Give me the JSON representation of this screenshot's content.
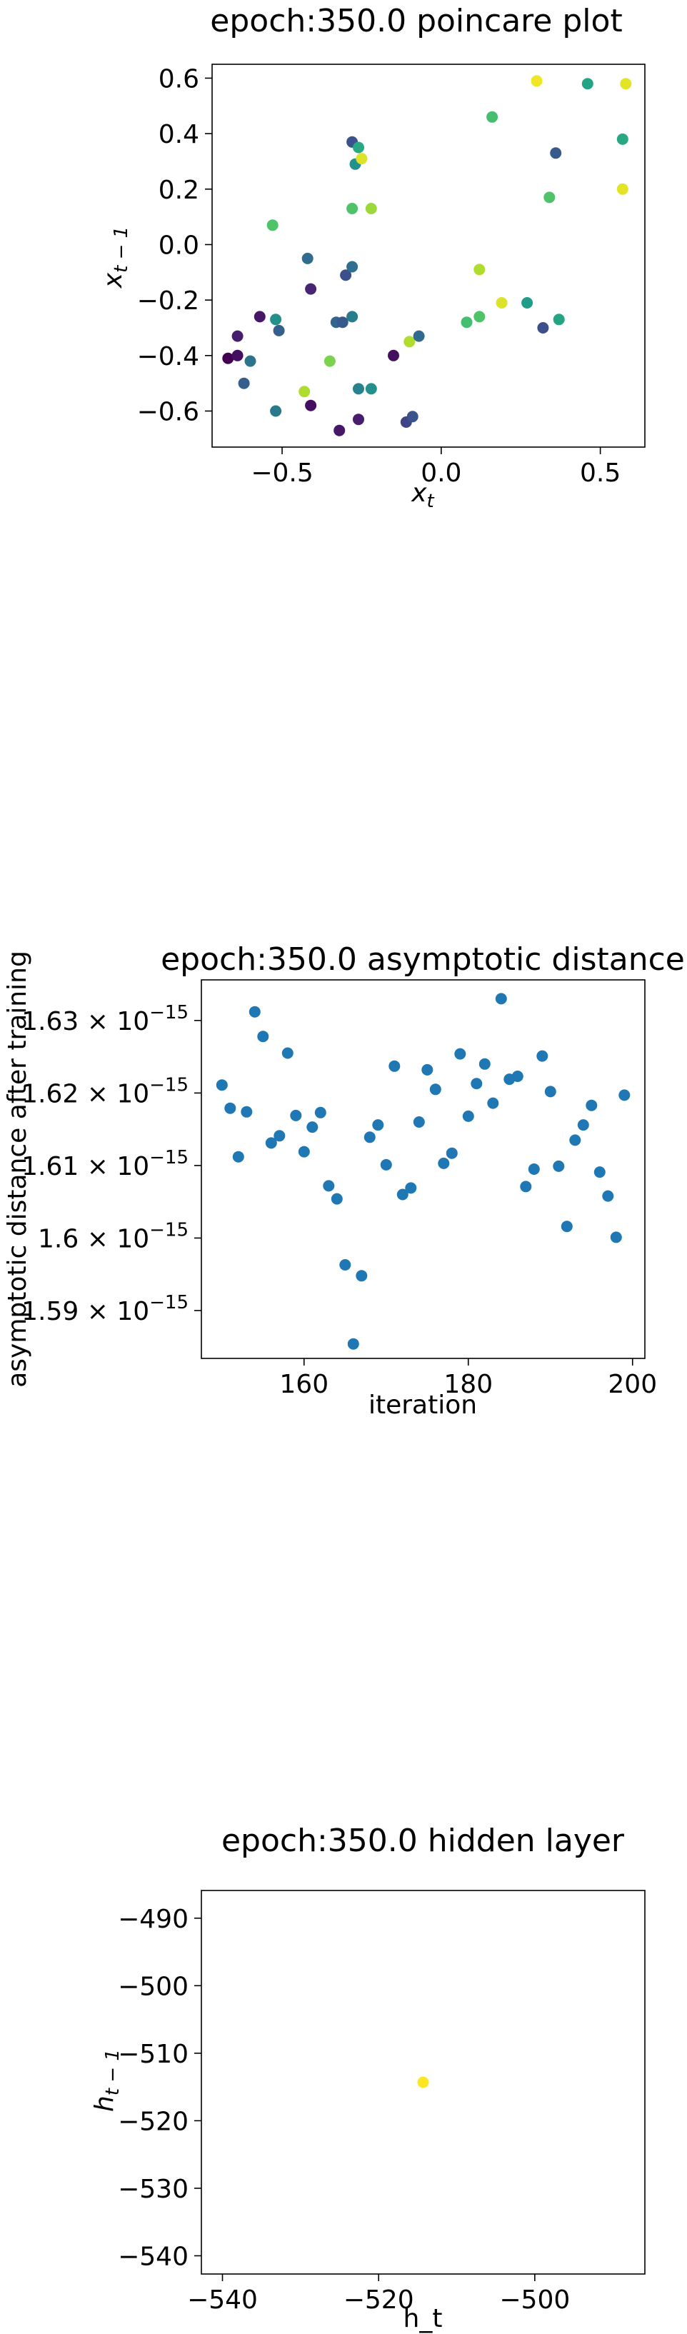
{
  "chart_data": [
    {
      "type": "scatter",
      "title": "epoch:350.0 poincare plot",
      "xlabel": "x_t",
      "ylabel": "x_{t-1}",
      "xlim": [
        -0.72,
        0.64
      ],
      "ylim": [
        -0.73,
        0.65
      ],
      "xticks": [
        -0.5,
        0.0,
        0.5
      ],
      "xtick_labels": [
        "−0.5",
        "0.0",
        "0.5"
      ],
      "yticks": [
        -0.6,
        -0.4,
        -0.2,
        0.0,
        0.2,
        0.4,
        0.6
      ],
      "ytick_labels": [
        "−0.6",
        "−0.4",
        "−0.2",
        "0.0",
        "0.2",
        "0.4",
        "0.6"
      ],
      "colormap": "viridis",
      "points": [
        {
          "x": -0.67,
          "y": -0.41,
          "c": 0.0
        },
        {
          "x": -0.64,
          "y": -0.33,
          "c": 0.08
        },
        {
          "x": -0.64,
          "y": -0.4,
          "c": 0.04
        },
        {
          "x": -0.62,
          "y": -0.5,
          "c": 0.3
        },
        {
          "x": -0.6,
          "y": -0.42,
          "c": 0.38
        },
        {
          "x": -0.57,
          "y": -0.26,
          "c": 0.06
        },
        {
          "x": -0.53,
          "y": 0.07,
          "c": 0.72
        },
        {
          "x": -0.52,
          "y": -0.27,
          "c": 0.5
        },
        {
          "x": -0.51,
          "y": -0.31,
          "c": 0.3
        },
        {
          "x": -0.52,
          "y": -0.6,
          "c": 0.4
        },
        {
          "x": -0.43,
          "y": -0.53,
          "c": 0.88
        },
        {
          "x": -0.42,
          "y": -0.05,
          "c": 0.35
        },
        {
          "x": -0.41,
          "y": -0.16,
          "c": 0.1
        },
        {
          "x": -0.41,
          "y": -0.58,
          "c": 0.04
        },
        {
          "x": -0.35,
          "y": -0.42,
          "c": 0.8
        },
        {
          "x": -0.33,
          "y": -0.28,
          "c": 0.32
        },
        {
          "x": -0.32,
          "y": -0.67,
          "c": 0.06
        },
        {
          "x": -0.31,
          "y": -0.28,
          "c": 0.28
        },
        {
          "x": -0.3,
          "y": -0.11,
          "c": 0.24
        },
        {
          "x": -0.28,
          "y": 0.37,
          "c": 0.26
        },
        {
          "x": -0.28,
          "y": 0.13,
          "c": 0.72
        },
        {
          "x": -0.28,
          "y": -0.26,
          "c": 0.42
        },
        {
          "x": -0.28,
          "y": -0.08,
          "c": 0.36
        },
        {
          "x": -0.27,
          "y": 0.29,
          "c": 0.5
        },
        {
          "x": -0.26,
          "y": 0.35,
          "c": 0.6
        },
        {
          "x": -0.26,
          "y": -0.63,
          "c": 0.08
        },
        {
          "x": -0.25,
          "y": 0.31,
          "c": 0.95
        },
        {
          "x": -0.26,
          "y": -0.52,
          "c": 0.45
        },
        {
          "x": -0.22,
          "y": 0.13,
          "c": 0.85
        },
        {
          "x": -0.22,
          "y": -0.52,
          "c": 0.5
        },
        {
          "x": -0.15,
          "y": -0.4,
          "c": 0.04
        },
        {
          "x": -0.11,
          "y": -0.64,
          "c": 0.2
        },
        {
          "x": -0.1,
          "y": -0.35,
          "c": 0.88
        },
        {
          "x": -0.09,
          "y": -0.62,
          "c": 0.26
        },
        {
          "x": -0.07,
          "y": -0.33,
          "c": 0.34
        },
        {
          "x": 0.08,
          "y": -0.28,
          "c": 0.7
        },
        {
          "x": 0.12,
          "y": -0.26,
          "c": 0.72
        },
        {
          "x": 0.12,
          "y": -0.09,
          "c": 0.88
        },
        {
          "x": 0.16,
          "y": 0.46,
          "c": 0.7
        },
        {
          "x": 0.19,
          "y": -0.21,
          "c": 0.95
        },
        {
          "x": 0.27,
          "y": -0.21,
          "c": 0.55
        },
        {
          "x": 0.3,
          "y": 0.59,
          "c": 0.98
        },
        {
          "x": 0.32,
          "y": -0.3,
          "c": 0.24
        },
        {
          "x": 0.34,
          "y": 0.17,
          "c": 0.72
        },
        {
          "x": 0.36,
          "y": 0.33,
          "c": 0.28
        },
        {
          "x": 0.37,
          "y": -0.27,
          "c": 0.58
        },
        {
          "x": 0.46,
          "y": 0.58,
          "c": 0.58
        },
        {
          "x": 0.57,
          "y": 0.38,
          "c": 0.6
        },
        {
          "x": 0.57,
          "y": 0.2,
          "c": 0.96
        },
        {
          "x": 0.58,
          "y": 0.58,
          "c": 0.96
        }
      ]
    },
    {
      "type": "scatter",
      "title": "epoch:350.0 asymptotic distance",
      "xlabel": "iteration",
      "ylabel": "asymptotic distance after training",
      "xlim": [
        147.5,
        201.5
      ],
      "ylim": [
        1.5834,
        1.6356
      ],
      "y_scale_exponent": -15,
      "xticks": [
        160,
        180,
        200
      ],
      "xtick_labels": [
        "160",
        "180",
        "200"
      ],
      "yticks": [
        1.59,
        1.6,
        1.61,
        1.62,
        1.63
      ],
      "ytick_mantissas": [
        "1.59",
        "1.6",
        "1.61",
        "1.62",
        "1.63"
      ],
      "ytick_base": "10",
      "ytick_exponent": "−15",
      "color": "#1f77b4",
      "x": [
        150,
        151,
        152,
        153,
        154,
        155,
        156,
        157,
        158,
        159,
        160,
        161,
        162,
        163,
        164,
        165,
        166,
        167,
        168,
        169,
        170,
        171,
        172,
        173,
        174,
        175,
        176,
        177,
        178,
        179,
        180,
        181,
        182,
        183,
        184,
        185,
        186,
        187,
        188,
        189,
        190,
        191,
        192,
        193,
        194,
        195,
        196,
        197,
        198,
        199
      ],
      "y": [
        1.6211,
        1.6179,
        1.6112,
        1.6174,
        1.6312,
        1.6278,
        1.6131,
        1.6141,
        1.6255,
        1.6169,
        1.6119,
        1.6153,
        1.6173,
        1.6072,
        1.6054,
        1.5963,
        1.5854,
        1.5948,
        1.6139,
        1.6156,
        1.6101,
        1.6237,
        1.606,
        1.6069,
        1.616,
        1.6232,
        1.6205,
        1.6103,
        1.6117,
        1.6254,
        1.6168,
        1.6213,
        1.624,
        1.6186,
        1.633,
        1.6219,
        1.6223,
        1.6071,
        1.6095,
        1.6251,
        1.6202,
        1.6099,
        1.6016,
        1.6135,
        1.6156,
        1.6183,
        1.6091,
        1.6058,
        1.6001,
        1.6197
      ]
    },
    {
      "type": "scatter",
      "title": "epoch:350.0 hidden layer",
      "xlabel": "h_t",
      "ylabel": "h_{t-1}",
      "xlim": [
        -542.7,
        -485.9
      ],
      "ylim": [
        -542.7,
        -485.9
      ],
      "xticks": [
        -540,
        -520,
        -500
      ],
      "xtick_labels": [
        "−540",
        "−520",
        "−500"
      ],
      "yticks": [
        -540,
        -530,
        -520,
        -510,
        -500,
        -490
      ],
      "ytick_labels": [
        "−540",
        "−530",
        "−520",
        "−510",
        "−500",
        "−490"
      ],
      "color": "#fde725",
      "points": [
        {
          "x": -514.3,
          "y": -514.3
        }
      ]
    }
  ]
}
